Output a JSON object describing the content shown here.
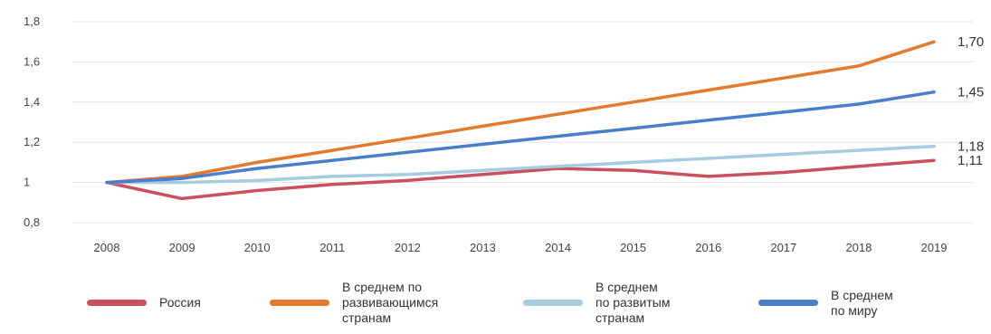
{
  "chart_data": {
    "type": "line",
    "categories": [
      "2008",
      "2009",
      "2010",
      "2011",
      "2012",
      "2013",
      "2014",
      "2015",
      "2016",
      "2017",
      "2018",
      "2019"
    ],
    "y_ticks": [
      "0,8",
      "1",
      "1,2",
      "1,4",
      "1,6",
      "1,8"
    ],
    "ylim": [
      0.8,
      1.8
    ],
    "grid": "horizontal",
    "legend_position": "bottom",
    "series": [
      {
        "name": "Россия",
        "color": "#c9505c",
        "end_label": "1,11",
        "values": [
          1.0,
          0.92,
          0.96,
          0.99,
          1.01,
          1.04,
          1.07,
          1.06,
          1.03,
          1.05,
          1.08,
          1.11
        ]
      },
      {
        "name": "В среднем по развивающимся странам",
        "color": "#e37a2e",
        "end_label": "1,70",
        "values": [
          1.0,
          1.03,
          1.1,
          1.16,
          1.22,
          1.28,
          1.34,
          1.4,
          1.46,
          1.52,
          1.58,
          1.7
        ]
      },
      {
        "name": "В среднем по развитым странам",
        "color": "#a6ccdf",
        "end_label": "1,18",
        "values": [
          1.0,
          1.0,
          1.01,
          1.03,
          1.04,
          1.06,
          1.08,
          1.1,
          1.12,
          1.14,
          1.16,
          1.18
        ]
      },
      {
        "name": "В среднем по миру",
        "color": "#4a7ecb",
        "end_label": "1,45",
        "values": [
          1.0,
          1.02,
          1.07,
          1.11,
          1.15,
          1.19,
          1.23,
          1.27,
          1.31,
          1.35,
          1.39,
          1.45
        ]
      }
    ]
  },
  "legend": [
    {
      "label": "Россия",
      "color": "#c9505c"
    },
    {
      "label": "В среднем по\nразвивающимся\nстранам",
      "color": "#e37a2e"
    },
    {
      "label": "В среднем\nпо развитым\nстранам",
      "color": "#a6ccdf"
    },
    {
      "label": "В среднем\nпо миру",
      "color": "#4a7ecb"
    }
  ]
}
